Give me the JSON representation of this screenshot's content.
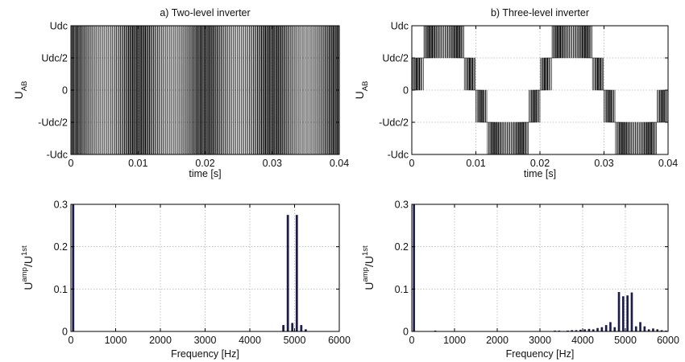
{
  "colors": {
    "wave": "#000000",
    "bar": "#1c1c4a",
    "grid": "#b5b5b5",
    "frame": "#000000"
  },
  "chart_data": [
    {
      "type": "line",
      "title": "a) Two-level inverter",
      "xlabel": "time [s]",
      "ylabel_main": "U",
      "ylabel_sub": "AB",
      "xlim": [
        0,
        0.04
      ],
      "ylim": [
        -1,
        1
      ],
      "x_ticks": [
        0,
        0.01,
        0.02,
        0.03,
        0.04
      ],
      "x_tick_labels": [
        "0",
        "0.01",
        "0.02",
        "0.03",
        "0.04"
      ],
      "y_ticks": [
        1,
        0.5,
        0,
        -0.5,
        -1
      ],
      "y_tick_labels": [
        "Udc",
        "Udc/2",
        "0",
        "-Udc/2",
        "-Udc"
      ],
      "grid": true,
      "series": [
        {
          "fundamental_hz": 50,
          "levels": 2,
          "switching_hz": 5000
        }
      ]
    },
    {
      "type": "line",
      "title": "b) Three-level inverter",
      "xlabel": "time [s]",
      "ylabel_main": "U",
      "ylabel_sub": "AB",
      "xlim": [
        0,
        0.04
      ],
      "ylim": [
        -1,
        1
      ],
      "x_ticks": [
        0,
        0.01,
        0.02,
        0.03,
        0.04
      ],
      "x_tick_labels": [
        "0",
        "0.01",
        "0.02",
        "0.03",
        "0.04"
      ],
      "y_ticks": [
        1,
        0.5,
        0,
        -0.5,
        -1
      ],
      "y_tick_labels": [
        "Udc",
        "Udc/2",
        "0",
        "-Udc/2",
        "-Udc"
      ],
      "grid": true,
      "series": [
        {
          "fundamental_hz": 50,
          "levels": 3,
          "switching_hz": 5000
        }
      ]
    },
    {
      "type": "bar",
      "xlabel": "Frequency [Hz]",
      "ylabel_main": "U",
      "ylabel_sup1": "amp",
      "ylabel_mid": "/U",
      "ylabel_sup2": "1st",
      "xlim": [
        0,
        6000
      ],
      "ylim": [
        0,
        0.3
      ],
      "x_ticks": [
        0,
        1000,
        2000,
        3000,
        4000,
        5000,
        6000
      ],
      "x_tick_labels": [
        "0",
        "1000",
        "2000",
        "3000",
        "4000",
        "5000",
        "6000"
      ],
      "y_ticks": [
        0.3,
        0.2,
        0.1,
        0
      ],
      "y_tick_labels": [
        "0.3",
        "0.2",
        "0.1",
        "0"
      ],
      "grid": true,
      "series": [
        {
          "x": [
            50,
            4750,
            4850,
            4950,
            5050,
            5150,
            5250
          ],
          "values": [
            0.3,
            0.015,
            0.275,
            0.02,
            0.275,
            0.015,
            0.005
          ]
        }
      ]
    },
    {
      "type": "bar",
      "xlabel": "Frequency [Hz]",
      "ylabel_main": "U",
      "ylabel_sup1": "amp",
      "ylabel_mid": "/U",
      "ylabel_sup2": "1st",
      "xlim": [
        0,
        6000
      ],
      "ylim": [
        0,
        0.3
      ],
      "x_ticks": [
        0,
        1000,
        2000,
        3000,
        4000,
        5000,
        6000
      ],
      "x_tick_labels": [
        "0",
        "1000",
        "2000",
        "3000",
        "4000",
        "5000",
        "6000"
      ],
      "y_ticks": [
        0.3,
        0.2,
        0.1,
        0
      ],
      "y_tick_labels": [
        "0.3",
        "0.2",
        "0.1",
        "0"
      ],
      "grid": true,
      "series": [
        {
          "x": [
            50,
            550,
            3350,
            3450,
            3650,
            3750,
            3850,
            3950,
            4050,
            4150,
            4250,
            4350,
            4450,
            4550,
            4650,
            4750,
            4850,
            4950,
            5050,
            5150,
            5250,
            5350,
            5450,
            5550,
            5650,
            5750,
            5850,
            5950
          ],
          "values": [
            0.3,
            0.002,
            0.002,
            0.002,
            0.002,
            0.003,
            0.003,
            0.004,
            0.005,
            0.006,
            0.005,
            0.008,
            0.01,
            0.015,
            0.022,
            0.01,
            0.093,
            0.083,
            0.085,
            0.092,
            0.012,
            0.022,
            0.012,
            0.005,
            0.007,
            0.005,
            0.003,
            0.002
          ]
        }
      ]
    }
  ]
}
